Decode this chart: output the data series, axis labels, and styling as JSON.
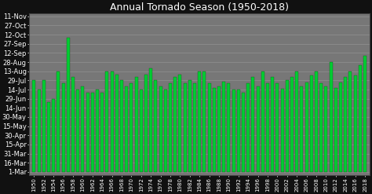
{
  "title": "Annual Tornado Season (1950-2018)",
  "title_fontsize": 9,
  "background_color": "#111111",
  "plot_bg_color": "#777777",
  "bar_color": "#00cc33",
  "bar_edge_color": "#004400",
  "years": [
    1950,
    1951,
    1952,
    1953,
    1954,
    1955,
    1956,
    1957,
    1958,
    1959,
    1960,
    1961,
    1962,
    1963,
    1964,
    1965,
    1966,
    1967,
    1968,
    1969,
    1970,
    1971,
    1972,
    1973,
    1974,
    1975,
    1976,
    1977,
    1978,
    1979,
    1980,
    1981,
    1982,
    1983,
    1984,
    1985,
    1986,
    1987,
    1988,
    1989,
    1990,
    1991,
    1992,
    1993,
    1994,
    1995,
    1996,
    1997,
    1998,
    1999,
    2000,
    2001,
    2002,
    2003,
    2004,
    2005,
    2006,
    2007,
    2008,
    2009,
    2010,
    2011,
    2012,
    2013,
    2014,
    2015,
    2016,
    2017,
    2018
  ],
  "start_doy": [
    60,
    60,
    60,
    60,
    60,
    60,
    60,
    60,
    60,
    60,
    60,
    60,
    60,
    60,
    60,
    60,
    60,
    60,
    60,
    60,
    60,
    60,
    60,
    60,
    60,
    60,
    60,
    60,
    60,
    60,
    60,
    60,
    60,
    60,
    60,
    60,
    60,
    60,
    60,
    60,
    60,
    60,
    60,
    60,
    60,
    60,
    60,
    60,
    60,
    60,
    60,
    60,
    60,
    60,
    60,
    60,
    60,
    60,
    60,
    60,
    60,
    60,
    60,
    60,
    60,
    60,
    60,
    60,
    60
  ],
  "end_doy": [
    210,
    195,
    210,
    175,
    180,
    225,
    205,
    280,
    215,
    195,
    200,
    190,
    190,
    195,
    190,
    225,
    225,
    220,
    210,
    200,
    205,
    215,
    195,
    220,
    230,
    210,
    200,
    195,
    205,
    215,
    220,
    205,
    210,
    205,
    225,
    225,
    205,
    198,
    200,
    208,
    205,
    195,
    195,
    190,
    205,
    215,
    200,
    225,
    205,
    215,
    205,
    196,
    210,
    215,
    225,
    200,
    207,
    218,
    225,
    205,
    200,
    240,
    197,
    207,
    215,
    225,
    218,
    235,
    250
  ],
  "ytick_labels": [
    "11-Nov",
    "27-Oct",
    "12-Oct",
    "27-Sep",
    "12-Sep",
    "28-Aug",
    "13-Aug",
    "29-Jul",
    "14-Jul",
    "29-Jun",
    "14-Jun",
    "30-May",
    "15-May",
    "30-Apr",
    "15-Apr",
    "31-Mar",
    "16-Mar",
    "1-Mar"
  ],
  "ytick_doys": [
    315,
    300,
    285,
    270,
    255,
    240,
    225,
    210,
    195,
    180,
    165,
    150,
    135,
    120,
    105,
    90,
    75,
    60
  ],
  "grid_color": "#999999",
  "xlabel_fontsize": 5,
  "ylabel_fontsize": 6,
  "bar_width": 0.65
}
